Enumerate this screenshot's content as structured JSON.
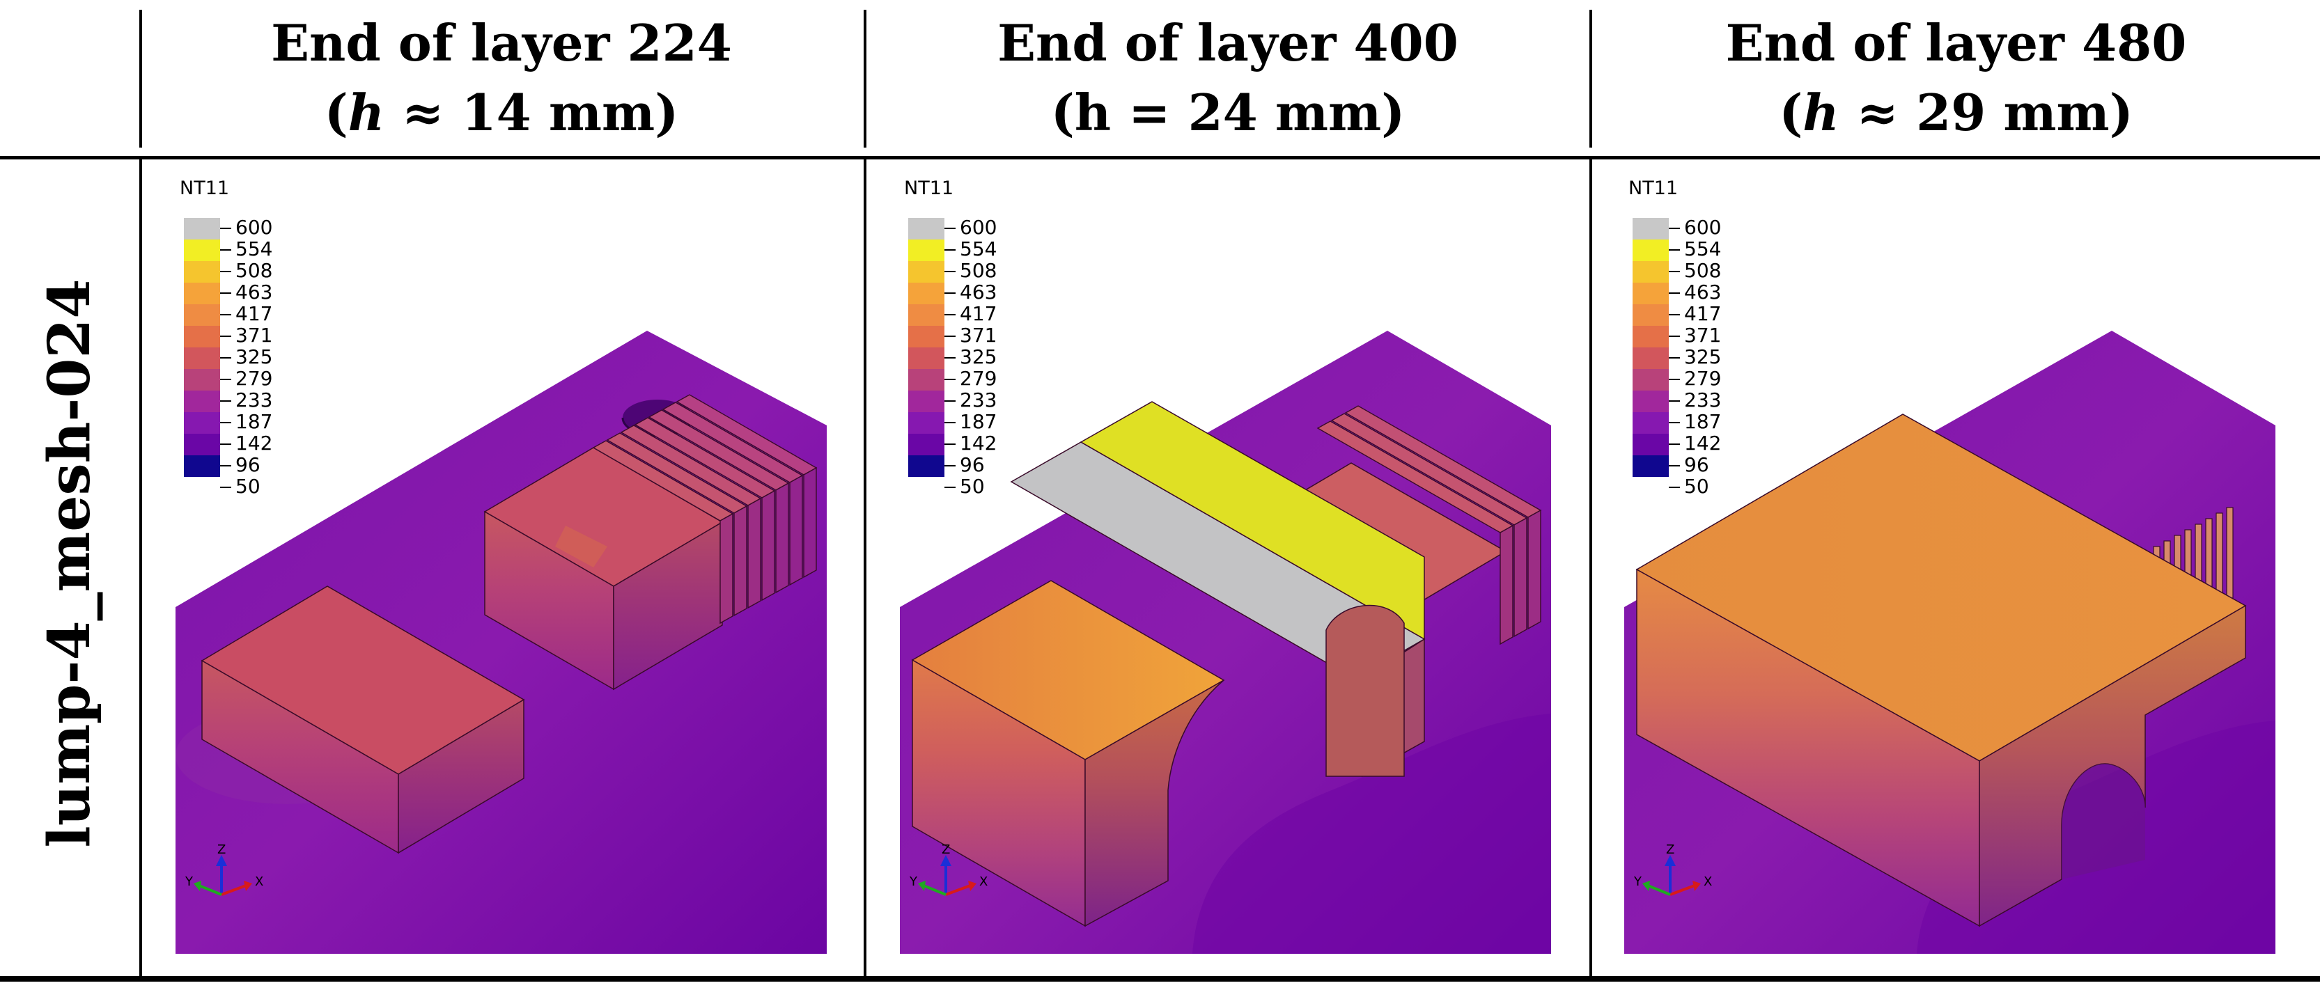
{
  "columns": [
    {
      "line1": "End of layer 224",
      "line2": "(ℎ ≈ 14 mm)"
    },
    {
      "line1": "End of layer 400",
      "line2": "(h = 24 mm)"
    },
    {
      "line1": "End of layer 480",
      "line2": "(ℎ ≈ 29 mm)"
    }
  ],
  "row_label": "lump-4_mesh-024",
  "legend": {
    "title": "NT11",
    "levels": [
      "600",
      "554",
      "508",
      "463",
      "417",
      "371",
      "325",
      "279",
      "233",
      "187",
      "142",
      "96",
      "50"
    ],
    "colors": [
      "#c8c8c8",
      "#f2ee24",
      "#f5c52e",
      "#f5a33a",
      "#ef8c43",
      "#e57048",
      "#d2565c",
      "#b8427a",
      "#a1279c",
      "#8618b0",
      "#6a06a6",
      "#3f07a0",
      "#10078f"
    ]
  },
  "axis_triad": {
    "y": "Y",
    "z": "Z",
    "x": "X"
  },
  "colors": {
    "substrate": "#7a0fa8",
    "part_mid": "#cf6d63",
    "part_hot": "#e58d3e",
    "powder": "#c3c3c5",
    "hot_layer": "#dfe024"
  }
}
